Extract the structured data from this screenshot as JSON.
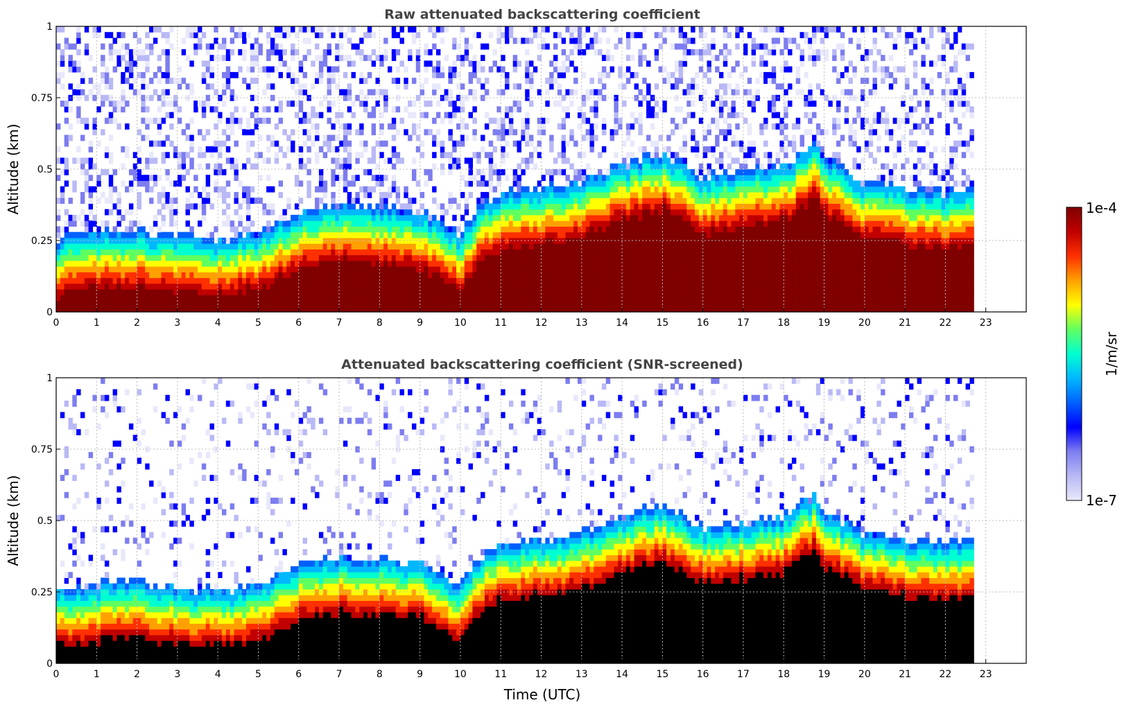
{
  "colors": {
    "clear": "#ffffff",
    "colormap": [
      "#e8e8fb",
      "#b9b9f6",
      "#7d7df0",
      "#0000ff",
      "#0060ff",
      "#00b8ff",
      "#00ffd0",
      "#60ff60",
      "#ffff00",
      "#ffa000",
      "#ff3000",
      "#c00000",
      "#800000"
    ],
    "screened_saturated": "#000000",
    "grid": "#bbbbbb"
  },
  "colorbar": {
    "label": "1/m/sr",
    "max_label": "1e-4",
    "min_label": "1e-7",
    "scale": "log"
  },
  "chart_data": [
    {
      "type": "heatmap",
      "title": "Raw attenuated backscattering coefficient",
      "xlabel": "",
      "ylabel": "Altitude (km)",
      "xlim": [
        0,
        24
      ],
      "ylim": [
        0,
        1
      ],
      "xticks": [
        "0",
        "1",
        "2",
        "3",
        "4",
        "5",
        "6",
        "7",
        "8",
        "9",
        "10",
        "11",
        "12",
        "13",
        "14",
        "15",
        "16",
        "17",
        "18",
        "19",
        "20",
        "21",
        "22",
        "23"
      ],
      "yticks": [
        "0",
        "0.25",
        "0.5",
        "0.75",
        "1"
      ],
      "ytick_values": [
        0,
        0.25,
        0.5,
        0.75,
        1
      ],
      "grid": true,
      "mixing_layer_top_km": {
        "time_utc": [
          0,
          1,
          2,
          3,
          4,
          5,
          6,
          7,
          8,
          9,
          10,
          10.5,
          11,
          12,
          13,
          14,
          15,
          16,
          17,
          18,
          18.8,
          19,
          20,
          21,
          21.5,
          22,
          22.65
        ],
        "altitude_km": [
          0.16,
          0.18,
          0.19,
          0.17,
          0.16,
          0.18,
          0.25,
          0.28,
          0.27,
          0.26,
          0.18,
          0.28,
          0.32,
          0.34,
          0.36,
          0.42,
          0.46,
          0.38,
          0.4,
          0.42,
          0.5,
          0.44,
          0.36,
          0.34,
          0.33,
          0.32,
          0.33
        ]
      },
      "data_end_utc": 22.65
    },
    {
      "type": "heatmap",
      "title": "Attenuated backscattering coefficient (SNR-screened)",
      "xlabel": "Time (UTC)",
      "ylabel": "Altitude (km)",
      "xlim": [
        0,
        24
      ],
      "ylim": [
        0,
        1
      ],
      "xticks": [
        "0",
        "1",
        "2",
        "3",
        "4",
        "5",
        "6",
        "7",
        "8",
        "9",
        "10",
        "11",
        "12",
        "13",
        "14",
        "15",
        "16",
        "17",
        "18",
        "19",
        "20",
        "21",
        "22",
        "23"
      ],
      "yticks": [
        "0",
        "0.25",
        "0.5",
        "0.75",
        "1"
      ],
      "ytick_values": [
        0,
        0.25,
        0.5,
        0.75,
        1
      ],
      "grid": true,
      "mixing_layer_top_km": {
        "time_utc": [
          0,
          1,
          2,
          3,
          4,
          5,
          6,
          7,
          8,
          9,
          10,
          10.5,
          11,
          12,
          13,
          14,
          15,
          16,
          17,
          18,
          18.8,
          19,
          20,
          21,
          21.5,
          22,
          22.65
        ],
        "altitude_km": [
          0.16,
          0.18,
          0.19,
          0.17,
          0.16,
          0.18,
          0.25,
          0.28,
          0.27,
          0.26,
          0.18,
          0.28,
          0.32,
          0.34,
          0.36,
          0.42,
          0.46,
          0.38,
          0.4,
          0.42,
          0.5,
          0.44,
          0.36,
          0.34,
          0.33,
          0.32,
          0.33
        ]
      },
      "data_end_utc": 22.65
    }
  ]
}
